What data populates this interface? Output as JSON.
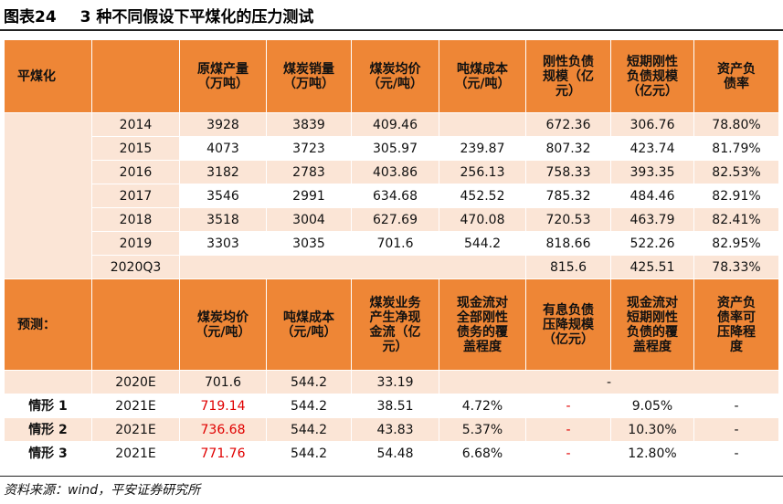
{
  "caption": {
    "figure_no": "图表24",
    "title": "3 种不同假设下平煤化的压力测试"
  },
  "historical": {
    "row_label": "平煤化",
    "headers": [
      "原煤产量（万吨）",
      "煤炭销量（万吨）",
      "煤炭均价（元/吨）",
      "吨煤成本（元/吨）",
      "刚性负债规模（亿元）",
      "短期刚性负债规模（亿元）",
      "资产负债率"
    ],
    "header_lines": [
      [
        "原煤产量",
        "（万吨）"
      ],
      [
        "煤炭销量",
        "（万吨）"
      ],
      [
        "煤炭均价",
        "（元/吨）"
      ],
      [
        "吨煤成本",
        "（元/吨）"
      ],
      [
        "刚性负债",
        "规模（亿",
        "元）"
      ],
      [
        "短期刚性",
        "负债规模",
        "（亿元）"
      ],
      [
        "资产负",
        "债率"
      ]
    ],
    "rows": [
      {
        "year": "2014",
        "output": "3928",
        "sales": "3839",
        "price": "409.46",
        "cost": "",
        "rigid_debt": "672.36",
        "short_debt": "306.76",
        "ratio": "78.80%"
      },
      {
        "year": "2015",
        "output": "4073",
        "sales": "3723",
        "price": "305.97",
        "cost": "239.87",
        "rigid_debt": "807.32",
        "short_debt": "423.74",
        "ratio": "81.79%"
      },
      {
        "year": "2016",
        "output": "3182",
        "sales": "2783",
        "price": "403.86",
        "cost": "256.13",
        "rigid_debt": "758.33",
        "short_debt": "393.35",
        "ratio": "82.53%"
      },
      {
        "year": "2017",
        "output": "3546",
        "sales": "2991",
        "price": "634.68",
        "cost": "452.52",
        "rigid_debt": "785.32",
        "short_debt": "484.46",
        "ratio": "82.91%"
      },
      {
        "year": "2018",
        "output": "3518",
        "sales": "3004",
        "price": "627.69",
        "cost": "470.08",
        "rigid_debt": "720.53",
        "short_debt": "463.79",
        "ratio": "82.41%"
      },
      {
        "year": "2019",
        "output": "3303",
        "sales": "3035",
        "price": "701.6",
        "cost": "544.2",
        "rigid_debt": "818.66",
        "short_debt": "522.26",
        "ratio": "82.95%"
      },
      {
        "year": "2020Q3",
        "output": "",
        "sales": "",
        "price": "",
        "cost": "",
        "rigid_debt": "815.6",
        "short_debt": "425.51",
        "ratio": "78.33%"
      }
    ]
  },
  "forecast": {
    "row_label": "预测：",
    "header_lines": [
      [
        "煤炭均价",
        "（元/吨）"
      ],
      [
        "吨煤成本",
        "（元/吨）"
      ],
      [
        "煤炭业务",
        "产生净现",
        "金流（亿",
        "元）"
      ],
      [
        "现金流对",
        "全部刚性",
        "债务的覆",
        "盖程度"
      ],
      [
        "有息负债",
        "压降规模",
        "（亿元）"
      ],
      [
        "现金流对",
        "短期刚性",
        "负债的覆",
        "盖程度"
      ],
      [
        "资产负",
        "债率可",
        "压降程",
        "度"
      ]
    ],
    "base": {
      "year": "2020E",
      "price": "701.6",
      "cost": "544.2",
      "cashflow": "33.19",
      "merged_dash": "-"
    },
    "scenarios": [
      {
        "label": "情形 1",
        "year": "2021E",
        "price": "719.14",
        "cost": "544.2",
        "cashflow": "38.51",
        "cover_all": "4.72%",
        "reduce": "-",
        "cover_short": "9.05%",
        "ratio_drop": "-"
      },
      {
        "label": "情形 2",
        "year": "2021E",
        "price": "736.68",
        "cost": "544.2",
        "cashflow": "43.83",
        "cover_all": "5.37%",
        "reduce": "-",
        "cover_short": "10.30%",
        "ratio_drop": "-"
      },
      {
        "label": "情形 3",
        "year": "2021E",
        "price": "771.76",
        "cost": "544.2",
        "cashflow": "54.48",
        "cover_all": "6.68%",
        "reduce": "-",
        "cover_short": "12.80%",
        "ratio_drop": "-"
      }
    ]
  },
  "source": "资料来源：wind，平安证券研究所",
  "colors": {
    "header_orange": "#ee8636",
    "row_peach": "#fbe5d6",
    "highlight_red": "#e00000"
  }
}
